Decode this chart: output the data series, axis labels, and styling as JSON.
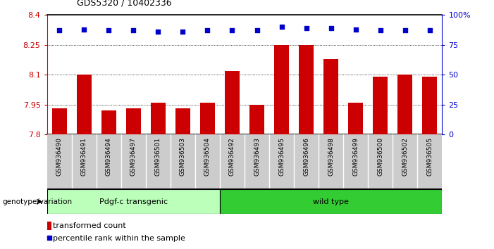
{
  "title": "GDS5320 / 10402336",
  "categories": [
    "GSM936490",
    "GSM936491",
    "GSM936494",
    "GSM936497",
    "GSM936501",
    "GSM936503",
    "GSM936504",
    "GSM936492",
    "GSM936493",
    "GSM936495",
    "GSM936496",
    "GSM936498",
    "GSM936499",
    "GSM936500",
    "GSM936502",
    "GSM936505"
  ],
  "bar_values": [
    7.93,
    8.1,
    7.92,
    7.93,
    7.96,
    7.93,
    7.96,
    8.12,
    7.95,
    8.25,
    8.25,
    8.18,
    7.96,
    8.09,
    8.1,
    8.09
  ],
  "percentile_values": [
    87,
    88,
    87,
    87,
    86,
    86,
    87,
    87,
    87,
    90,
    89,
    89,
    88,
    87,
    87,
    87
  ],
  "ylim_left": [
    7.8,
    8.4
  ],
  "ylim_right": [
    0,
    100
  ],
  "yticks_left": [
    7.8,
    7.95,
    8.1,
    8.25,
    8.4
  ],
  "yticks_right": [
    0,
    25,
    50,
    75,
    100
  ],
  "ytick_labels_left": [
    "7.8",
    "7.95",
    "8.1",
    "8.25",
    "8.4"
  ],
  "ytick_labels_right": [
    "0",
    "25",
    "50",
    "75",
    "100%"
  ],
  "gridlines": [
    7.95,
    8.1,
    8.25
  ],
  "bar_color": "#cc0000",
  "scatter_color": "#0000cc",
  "group1_label": "Pdgf-c transgenic",
  "group2_label": "wild type",
  "group1_color": "#bbffbb",
  "group2_color": "#33cc33",
  "group1_count": 7,
  "group2_count": 9,
  "genotype_label": "genotype/variation",
  "legend_bar_label": "transformed count",
  "legend_scatter_label": "percentile rank within the sample",
  "bar_color_legend": "#cc0000",
  "scatter_color_legend": "#0000cc",
  "tick_label_bg": "#cccccc",
  "title_fontsize": 9,
  "bar_width": 0.6
}
